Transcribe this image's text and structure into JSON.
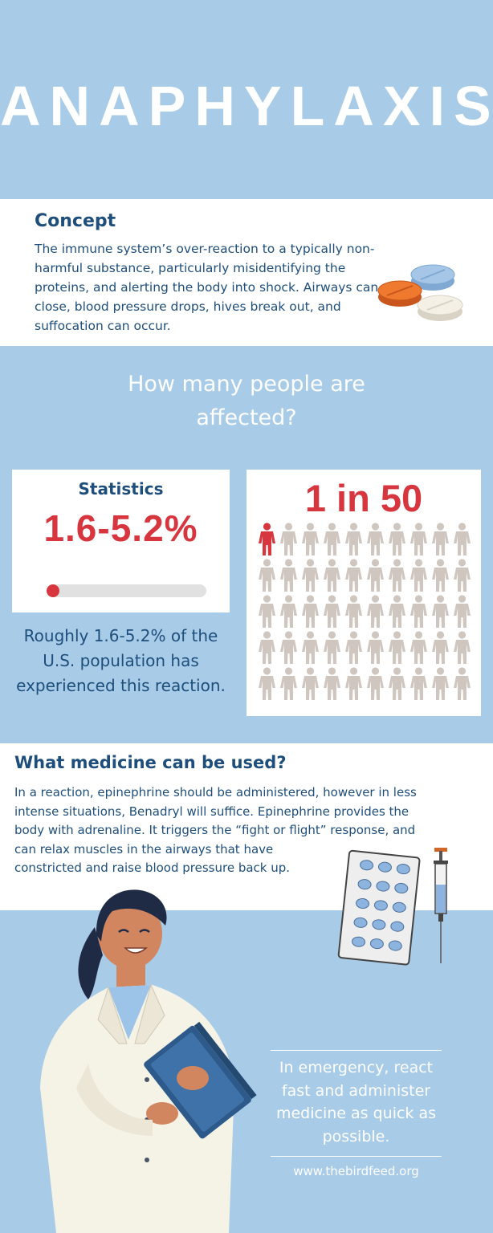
{
  "title": "ANAPHYLAXIS",
  "concept": {
    "heading": "Concept",
    "text": "The immune system’s over-reaction to a typically non-harmful substance, particularly misidentifying the proteins, and alerting the body into shock. Airways can close, blood pressure drops, hives break out, and suffocation can occur."
  },
  "affected": {
    "heading": "How many people are affected?"
  },
  "statistics": {
    "label": "Statistics",
    "value": "1.6-5.2%",
    "progress_fraction": 0.05,
    "description": "Roughly 1.6-5.2% of the U.S. population has experienced this reaction."
  },
  "ratio": {
    "value": "1 in 50",
    "total_people": 50,
    "highlighted_people": 1
  },
  "medicine": {
    "heading": "What medicine can be used?",
    "lines": [
      "In a reaction, epinephrine should be administered, however in less",
      "intense situations, Benadryl will suffice. Epinephrine provides the",
      "body with adrenaline. It triggers the “fight or flight” response, and",
      "can relax muscles in the airways that have",
      "constricted and raise blood pressure back up."
    ]
  },
  "emergency": {
    "text": "In emergency, react fast and administer medicine as quick as possible."
  },
  "website": "www.thebirdfeed.org",
  "colors": {
    "background": "#a8cbe7",
    "accent_red": "#d8363f",
    "navy": "#1e4e7b",
    "person_gray": "#cfc7bf"
  },
  "icons": [
    "pills-icon",
    "person-icon",
    "blister-pack-icon",
    "syringe-icon",
    "doctor-illustration"
  ]
}
